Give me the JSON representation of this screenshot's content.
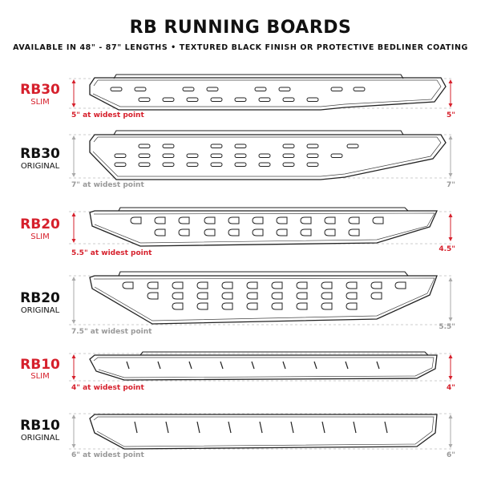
{
  "title": "RB RUNNING BOARDS",
  "subtitle": "AVAILABLE IN 48\" - 87\" LENGTHS   •   TEXTURED BLACK FINISH OR PROTECTIVE BEDLINER COATING",
  "colors": {
    "slim": "#d6202c",
    "original": "#111111",
    "dimension_original": "#999999"
  },
  "boards": [
    {
      "model": "RB30",
      "variant": "SLIM",
      "widest": "5\" at widest point",
      "end": "5\""
    },
    {
      "model": "RB30",
      "variant": "ORIGINAL",
      "widest": "7\" at widest point",
      "end": "7\""
    },
    {
      "model": "RB20",
      "variant": "SLIM",
      "widest": "5.5\" at widest point",
      "end": "4.5\""
    },
    {
      "model": "RB20",
      "variant": "ORIGINAL",
      "widest": "7.5\" at widest point",
      "end": "5.5\""
    },
    {
      "model": "RB10",
      "variant": "SLIM",
      "widest": "4\" at widest point",
      "end": "4\""
    },
    {
      "model": "RB10",
      "variant": "ORIGINAL",
      "widest": "6\" at widest point",
      "end": "6\""
    }
  ]
}
